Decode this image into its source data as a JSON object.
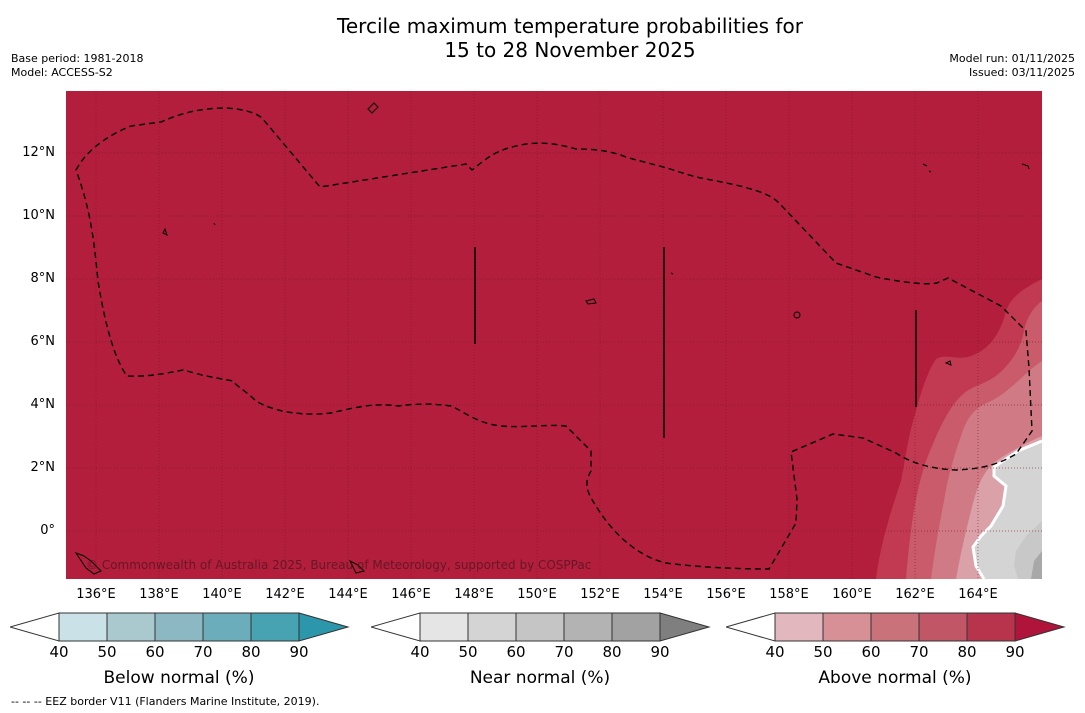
{
  "title": {
    "line1": "Tercile maximum temperature probabilities for",
    "line2": "15 to 28 November 2025"
  },
  "meta": {
    "base_period": "Base period: 1981-2018",
    "model": "Model: ACCESS-S2",
    "model_run": "Model run: 01/11/2025",
    "issued": "Issued: 03/11/2025"
  },
  "map": {
    "lat_ticks": [
      "12°N",
      "10°N",
      "8°N",
      "6°N",
      "4°N",
      "2°N",
      "0°"
    ],
    "lon_ticks": [
      "136°E",
      "138°E",
      "140°E",
      "142°E",
      "144°E",
      "146°E",
      "148°E",
      "150°E",
      "152°E",
      "154°E",
      "156°E",
      "158°E",
      "160°E",
      "162°E",
      "164°E"
    ],
    "copyright": "© Commonwealth of Australia 2025, Bureau of Meteorology, supported by COSPPac",
    "colors": {
      "above_90": "#b21e3c",
      "above_80": "#c13a52",
      "above_70": "#c95b6a",
      "above_60": "#d07a85",
      "above_50": "#dba1a9",
      "near_50": "#d4d4d4",
      "near_60": "#c8c8c8",
      "near_70": "#a8a8a8"
    }
  },
  "colorbars": {
    "below": {
      "title": "Below normal (%)",
      "ticks": [
        "40",
        "50",
        "60",
        "70",
        "80",
        "90"
      ],
      "colors": [
        "#c9e1e7",
        "#a9c9cf",
        "#8bb8c2",
        "#6badba",
        "#47a2b2",
        "#2c96aa"
      ]
    },
    "near": {
      "title": "Near normal (%)",
      "ticks": [
        "40",
        "50",
        "60",
        "70",
        "80",
        "90"
      ],
      "colors": [
        "#e5e5e5",
        "#d4d4d4",
        "#c5c5c5",
        "#b3b3b3",
        "#a2a2a2",
        "#7f7f7f"
      ]
    },
    "above": {
      "title": "Above normal (%)",
      "ticks": [
        "40",
        "50",
        "60",
        "70",
        "80",
        "90"
      ],
      "colors": [
        "#e2b7bd",
        "#d69096",
        "#c97279",
        "#c05666",
        "#b8344c",
        "#b0143a"
      ]
    }
  },
  "footnote": "--  --  -- EEZ border V11 (Flanders Marine Institute, 2019)."
}
